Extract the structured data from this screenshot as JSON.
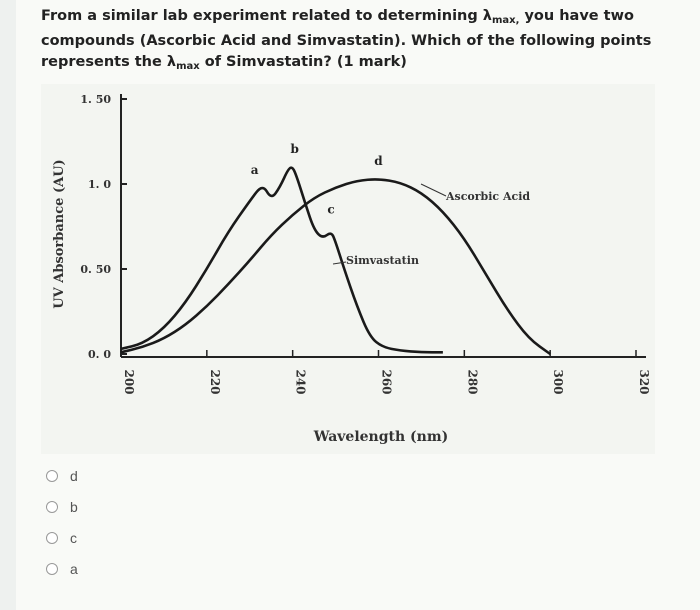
{
  "question": {
    "text_part1": "From a similar lab experiment related to determining λ",
    "max_sub1": "max,",
    "text_part2": " you have two compounds (Ascorbic Acid and Simvastatin). Which of the following points represents the λ",
    "max_sub2": "max",
    "text_part3": " of Simvastatin? (1 mark)"
  },
  "options": [
    {
      "label": "d"
    },
    {
      "label": "b"
    },
    {
      "label": "c"
    },
    {
      "label": "a"
    }
  ],
  "chart_data": {
    "type": "line",
    "xlabel": "Wavelength (nm)",
    "ylabel": "UV Absorbance (AU)",
    "xlim": [
      200,
      320
    ],
    "ylim": [
      0,
      1.5
    ],
    "x_ticks": [
      "200",
      "220",
      "240",
      "260",
      "280",
      "300",
      "320"
    ],
    "y_ticks": [
      "0. 0",
      "0. 50",
      "1. 0",
      "1. 50"
    ],
    "series": [
      {
        "name": "Ascorbic Acid",
        "x": [
          200,
          205,
          210,
          215,
          220,
          225,
          230,
          235,
          240,
          245,
          250,
          255,
          260,
          265,
          270,
          275,
          280,
          285,
          290,
          295,
          300
        ],
        "y": [
          0.01,
          0.04,
          0.09,
          0.17,
          0.28,
          0.41,
          0.55,
          0.7,
          0.82,
          0.92,
          0.98,
          1.02,
          1.03,
          1.01,
          0.95,
          0.84,
          0.68,
          0.47,
          0.26,
          0.09,
          0.0
        ]
      },
      {
        "name": "Simvastatin",
        "x": [
          200,
          205,
          210,
          215,
          220,
          225,
          230,
          233,
          235,
          237,
          239,
          240,
          241,
          243,
          245,
          247,
          249,
          250,
          252,
          255,
          258,
          261,
          265,
          270,
          275
        ],
        "y": [
          0.03,
          0.06,
          0.15,
          0.3,
          0.5,
          0.72,
          0.9,
          1.0,
          0.91,
          0.98,
          1.09,
          1.1,
          1.04,
          0.88,
          0.73,
          0.68,
          0.72,
          0.66,
          0.5,
          0.28,
          0.1,
          0.04,
          0.02,
          0.01,
          0.01
        ]
      }
    ],
    "points": [
      {
        "label": "a",
        "x": 233,
        "y": 1.0
      },
      {
        "label": "b",
        "x": 240,
        "y": 1.1
      },
      {
        "label": "c",
        "x": 248,
        "y": 0.72
      },
      {
        "label": "d",
        "x": 260,
        "y": 1.03
      }
    ],
    "annotations": [
      {
        "text": "Ascorbic Acid",
        "series": "Ascorbic Acid"
      },
      {
        "text": "Simvastatin",
        "series": "Simvastatin"
      }
    ],
    "grid": false,
    "legend": "none"
  }
}
